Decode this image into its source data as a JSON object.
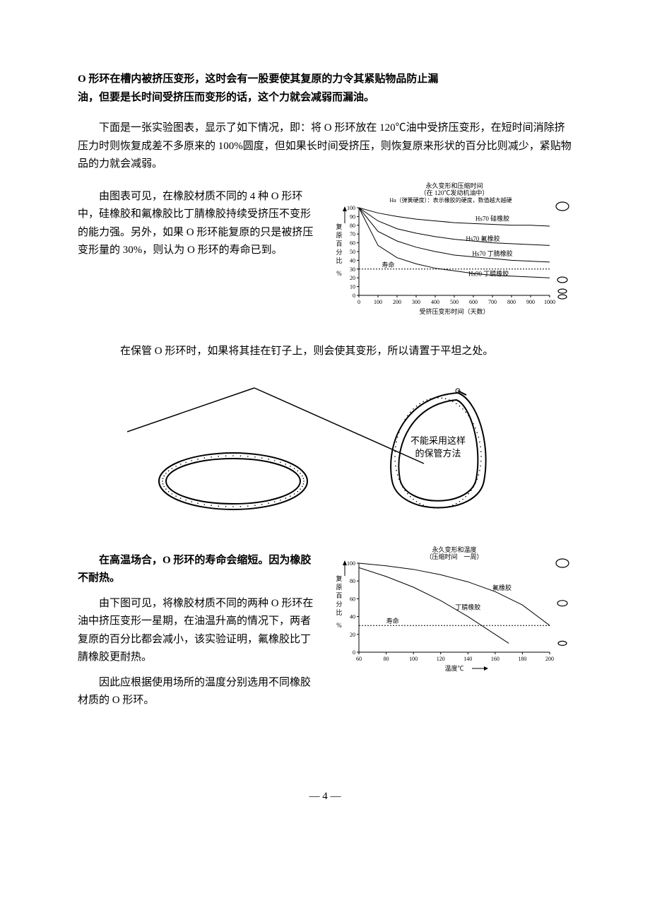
{
  "heading": {
    "line1": "O 形环在槽内被挤压变形，这时会有一股要使其复原的力令其紧贴物品防止漏",
    "line2": "油，但要是长时间受挤压而变形的话，这个力就会减弱而漏油。"
  },
  "para1": "下面是一张实验图表，显示了如下情况，即：将 O 形环放在 120℃油中受挤压变形，在短时间消除挤压力时则恢复成差不多原来的 100%圆度，但如果长时间受挤压，则恢复原来形状的百分比则减少，紧贴物品的力就会减弱。",
  "para2": "由图表可见，在橡胶材质不同的 4 种 O 形环中，硅橡胶和氟橡胶比丁腈橡胶持续受挤压不变形的能力强。另外，如果 O 形环能复原的只是被挤压变形量的 30%，则认为 O 形环的寿命已到。",
  "chart1": {
    "title1": "永久变形和压缩时间",
    "title2": "（在 120℃发动机油中）",
    "subtitle": "Ha（弹簧硬度）：表示橡胶的硬度，数值越大越硬",
    "y_axis": "复原百分比",
    "y_unit": "%",
    "x_axis": "受挤压变形时间（天数）",
    "x_ticks": [
      "0",
      "100",
      "200",
      "300",
      "400",
      "500",
      "600",
      "700",
      "800",
      "900",
      "1000"
    ],
    "y_ticks": [
      "0",
      "10",
      "20",
      "30",
      "40",
      "50",
      "60",
      "70",
      "80",
      "90",
      "100"
    ],
    "life_label": "寿命",
    "xlim": [
      0,
      1000
    ],
    "ylim": [
      0,
      100
    ],
    "background_color": "#ffffff",
    "line_color": "#000000",
    "series": [
      {
        "label": "Hs70 硅橡胶",
        "label_x": 700,
        "label_y": 85,
        "points": [
          [
            0,
            100
          ],
          [
            100,
            94
          ],
          [
            200,
            90
          ],
          [
            300,
            87
          ],
          [
            400,
            85
          ],
          [
            500,
            83
          ],
          [
            600,
            82
          ],
          [
            700,
            81
          ],
          [
            800,
            80
          ],
          [
            900,
            80
          ],
          [
            1000,
            79
          ]
        ]
      },
      {
        "label": "Hs70 氟橡胶",
        "label_x": 650,
        "label_y": 62,
        "points": [
          [
            0,
            100
          ],
          [
            100,
            85
          ],
          [
            200,
            76
          ],
          [
            300,
            71
          ],
          [
            400,
            67
          ],
          [
            500,
            64
          ],
          [
            600,
            62
          ],
          [
            700,
            60
          ],
          [
            800,
            59
          ],
          [
            900,
            58
          ],
          [
            1000,
            57
          ]
        ]
      },
      {
        "label": "Hs70 丁腈橡胶",
        "label_x": 700,
        "label_y": 45,
        "points": [
          [
            0,
            100
          ],
          [
            100,
            73
          ],
          [
            200,
            62
          ],
          [
            300,
            55
          ],
          [
            400,
            50
          ],
          [
            500,
            46
          ],
          [
            600,
            44
          ],
          [
            700,
            42
          ],
          [
            800,
            40
          ],
          [
            900,
            39
          ],
          [
            1000,
            38
          ]
        ]
      },
      {
        "label": "Hs90 丁腈橡胶",
        "label_x": 680,
        "label_y": 22,
        "points": [
          [
            0,
            100
          ],
          [
            100,
            57
          ],
          [
            200,
            43
          ],
          [
            300,
            36
          ],
          [
            400,
            31
          ],
          [
            500,
            28
          ],
          [
            600,
            25
          ],
          [
            700,
            23
          ],
          [
            800,
            22
          ],
          [
            900,
            21
          ],
          [
            1000,
            20
          ]
        ]
      }
    ]
  },
  "para3": "在保管 O 形环时，如果将其挂在钉子上，则会使其变形，所以请置于平坦之处。",
  "ring_diagram": {
    "warning_line1": "不能采用这样",
    "warning_line2": "的保管方法",
    "ring_color": "#000000",
    "texture_color": "#000000"
  },
  "para4_bold": "在高温场合，O 形环的寿命会缩短。因为橡胶不耐热。",
  "para5": "由下图可见，将橡胶材质不同的两种 O 形环在油中挤压变形一星期，在油温升高的情况下，两者复原的百分比都会减小，该实验证明，氟橡胶比丁腈橡胶更耐热。",
  "para6": "因此应根据使用场所的温度分别选用不同橡胶材质的 O 形环。",
  "chart2": {
    "title1": "永久变形和温度",
    "title2": "（压缩时间　一周）",
    "y_axis": "复原百分比",
    "y_unit": "%",
    "x_axis": "温度℃",
    "x_ticks": [
      "60",
      "80",
      "100",
      "120",
      "140",
      "160",
      "180",
      "200"
    ],
    "y_ticks": [
      "0",
      "20",
      "40",
      "60",
      "80",
      "100"
    ],
    "life_label": "寿命",
    "xlim": [
      60,
      200
    ],
    "ylim": [
      0,
      100
    ],
    "background_color": "#ffffff",
    "line_color": "#000000",
    "series": [
      {
        "label": "氟橡胶",
        "label_x": 165,
        "label_y": 70,
        "points": [
          [
            60,
            100
          ],
          [
            80,
            97
          ],
          [
            100,
            93
          ],
          [
            120,
            87
          ],
          [
            140,
            79
          ],
          [
            160,
            68
          ],
          [
            180,
            53
          ],
          [
            200,
            30
          ]
        ]
      },
      {
        "label": "丁腈橡胶",
        "label_x": 140,
        "label_y": 48,
        "points": [
          [
            60,
            95
          ],
          [
            80,
            85
          ],
          [
            100,
            73
          ],
          [
            120,
            58
          ],
          [
            140,
            40
          ],
          [
            160,
            20
          ],
          [
            170,
            10
          ]
        ]
      }
    ]
  },
  "page_number": "— 4 —"
}
